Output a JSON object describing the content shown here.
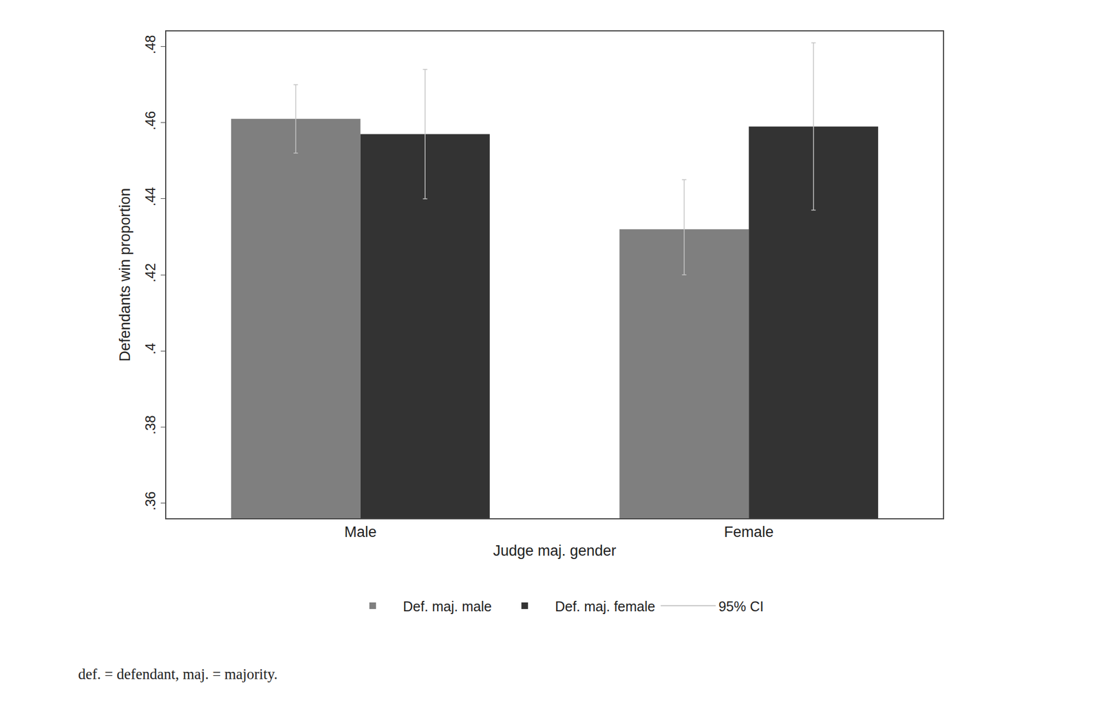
{
  "chart_data": {
    "type": "bar",
    "x_label": "Judge maj. gender",
    "y_label": "Defendants win proportion",
    "categories": [
      "Male",
      "Female"
    ],
    "series": [
      {
        "name": "Def. maj. male",
        "color": "#7f7f7f",
        "values": [
          0.461,
          0.432
        ],
        "ci_lower": [
          0.452,
          0.42
        ],
        "ci_upper": [
          0.47,
          0.445
        ]
      },
      {
        "name": "Def. maj. female",
        "color": "#333333",
        "values": [
          0.457,
          0.459
        ],
        "ci_lower": [
          0.44,
          0.437
        ],
        "ci_upper": [
          0.474,
          0.481
        ]
      }
    ],
    "error_bar_label": "95% CI",
    "error_bar_color": "#c4c4c4",
    "ylim": [
      0.356,
      0.484
    ],
    "yticks": [
      {
        "value": 0.36,
        "label": ".36"
      },
      {
        "value": 0.38,
        "label": ".38"
      },
      {
        "value": 0.4,
        "label": ".4"
      },
      {
        "value": 0.42,
        "label": ".42"
      },
      {
        "value": 0.44,
        "label": ".44"
      },
      {
        "value": 0.46,
        "label": ".46"
      },
      {
        "value": 0.48,
        "label": ".48"
      }
    ],
    "grid": false,
    "legend": "bottom",
    "note": "def. = defendant, maj. = majority."
  }
}
